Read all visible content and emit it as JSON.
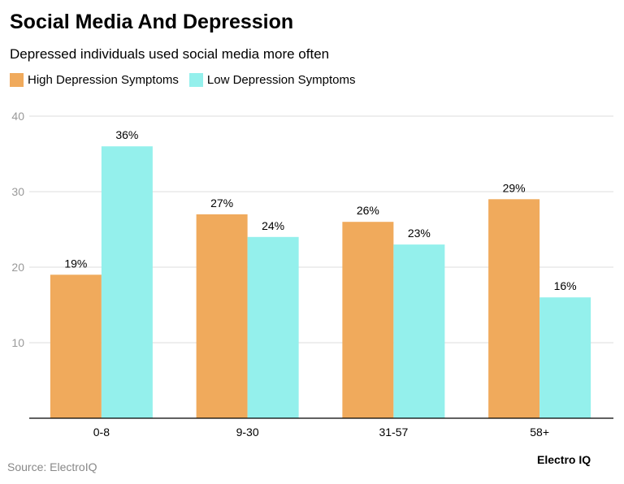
{
  "chart_data": {
    "type": "bar",
    "title": "Social Media And Depression",
    "subtitle": "Depressed individuals used social media more often",
    "categories": [
      "0-8",
      "9-30",
      "31-57",
      "58+"
    ],
    "series": [
      {
        "name": "High Depression Symptoms",
        "values": [
          19,
          27,
          26,
          29
        ],
        "labels": [
          "19%",
          "27%",
          "26%",
          "29%"
        ],
        "color": "#F0AA5C"
      },
      {
        "name": "Low Depression Symptoms",
        "values": [
          36,
          24,
          23,
          16
        ],
        "labels": [
          "36%",
          "24%",
          "23%",
          "16%"
        ],
        "color": "#94F0EC"
      }
    ],
    "ylim": [
      0,
      40
    ],
    "yticks": [
      10,
      20,
      30,
      40
    ],
    "grid": true,
    "legend": "top-left",
    "xlabel": "",
    "ylabel": ""
  },
  "footer": {
    "source": "Source: ElectroIQ",
    "brand": "Electro IQ"
  }
}
